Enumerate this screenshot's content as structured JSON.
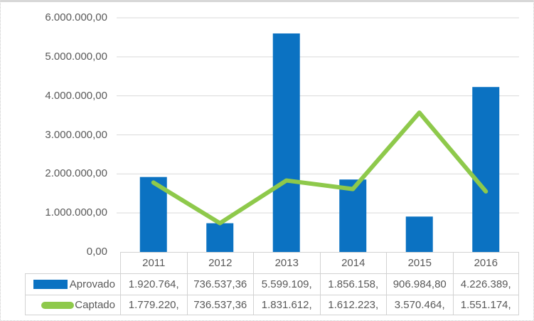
{
  "chart_data": {
    "type": "bar",
    "subtype": "bar+line combo with data table",
    "categories": [
      "2011",
      "2012",
      "2013",
      "2014",
      "2015",
      "2016"
    ],
    "series": [
      {
        "name": "Aprovado",
        "type": "bar",
        "color": "#0b72c2",
        "values": [
          1920764,
          736537.36,
          5599109,
          1856158,
          906984.8,
          4226389
        ]
      },
      {
        "name": "Captado",
        "type": "line",
        "color": "#8ec94b",
        "values": [
          1779220,
          736537.36,
          1831612,
          1612223,
          3570464,
          1551174
        ]
      }
    ],
    "title": "",
    "xlabel": "",
    "ylabel": "",
    "ylim": [
      0,
      6000000
    ],
    "grid": true,
    "legend_position": "data-table-left"
  },
  "y_axis": {
    "ticks": [
      "6.000.000,00",
      "5.000.000,00",
      "4.000.000,00",
      "3.000.000,00",
      "2.000.000,00",
      "1.000.000,00",
      "0,00"
    ]
  },
  "table": {
    "year_headers": [
      "2011",
      "2012",
      "2013",
      "2014",
      "2015",
      "2016"
    ],
    "rows": [
      {
        "label": "Aprovado",
        "swatch": "bar",
        "cells": [
          "1.920.764,",
          "736.537,36",
          "5.599.109,",
          "1.856.158,",
          "906.984,80",
          "4.226.389,"
        ]
      },
      {
        "label": "Captado",
        "swatch": "line",
        "cells": [
          "1.779.220,",
          "736.537,36",
          "1.831.612,",
          "1.612.223,",
          "3.570.464,",
          "1.551.174,"
        ]
      }
    ]
  },
  "colors": {
    "bar_fill": "#0b72c2",
    "line_stroke": "#8ec94b",
    "gridline": "#dadada",
    "table_border": "#d2d2d2",
    "text": "#595959",
    "background": "#ffffff"
  }
}
